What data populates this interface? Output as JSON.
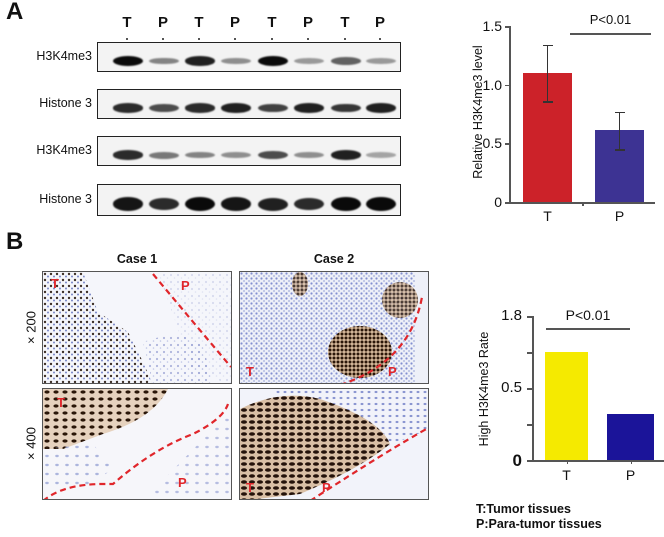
{
  "figure": {
    "panel_a_label": "A",
    "panel_b_label": "B"
  },
  "western_blot": {
    "lane_labels": [
      "T",
      "P",
      "T",
      "P",
      "T",
      "P",
      "T",
      "P"
    ],
    "rows": [
      {
        "label": "H3K4me3",
        "intensities": [
          1.0,
          0.45,
          0.9,
          0.4,
          1.0,
          0.35,
          0.6,
          0.35
        ]
      },
      {
        "label": "Histone 3",
        "intensities": [
          0.85,
          0.7,
          0.85,
          0.9,
          0.75,
          0.9,
          0.8,
          0.9
        ]
      },
      {
        "label": "H3K4me3",
        "intensities": [
          0.85,
          0.5,
          0.45,
          0.4,
          0.7,
          0.4,
          0.9,
          0.3
        ]
      },
      {
        "label": "Histone 3",
        "intensities": [
          0.95,
          0.85,
          1.0,
          0.95,
          0.9,
          0.85,
          1.0,
          1.0
        ]
      }
    ]
  },
  "histology": {
    "case_titles": [
      "Case 1",
      "Case 2"
    ],
    "magnifications": [
      "× 200",
      "× 400"
    ],
    "region_labels": {
      "tumor": "T",
      "para": "P"
    }
  },
  "legend": {
    "lines": [
      "T:Tumor tissues",
      "P:Para-tumor tissues"
    ]
  },
  "colors": {
    "t_bar_a": "#cc2229",
    "p_bar_a": "#3d3393",
    "t_bar_b": "#f5ea00",
    "p_bar_b": "#1b1499",
    "dashed_boundary": "#e0262b"
  },
  "chart_data": [
    {
      "type": "bar",
      "title": "",
      "categories": [
        "T",
        "P"
      ],
      "values": [
        1.1,
        0.61
      ],
      "error_upper": [
        1.34,
        0.77
      ],
      "error_lower": [
        0.86,
        0.45
      ],
      "xlabel": "",
      "ylabel": "Relative H3K4me3 level",
      "ylim": [
        0,
        1.5
      ],
      "yticks": [
        "0",
        "0.5",
        "1.0",
        "1.5"
      ],
      "annotation": "P<0.01",
      "grid": false,
      "legend": null
    },
    {
      "type": "bar",
      "title": "",
      "categories": [
        "T",
        "P"
      ],
      "values_tick_fraction": [
        0.75,
        0.32
      ],
      "values": [
        0.75,
        0.32
      ],
      "xlabel": "",
      "ylabel": "High H3K4me3 Rate",
      "ytick_labels": [
        "0",
        "",
        "0.5",
        "",
        "1.8"
      ],
      "annotation": "P<0.01",
      "grid": false,
      "legend": [
        "T:Tumor tissues",
        "P:Para-tumor tissues"
      ]
    }
  ]
}
